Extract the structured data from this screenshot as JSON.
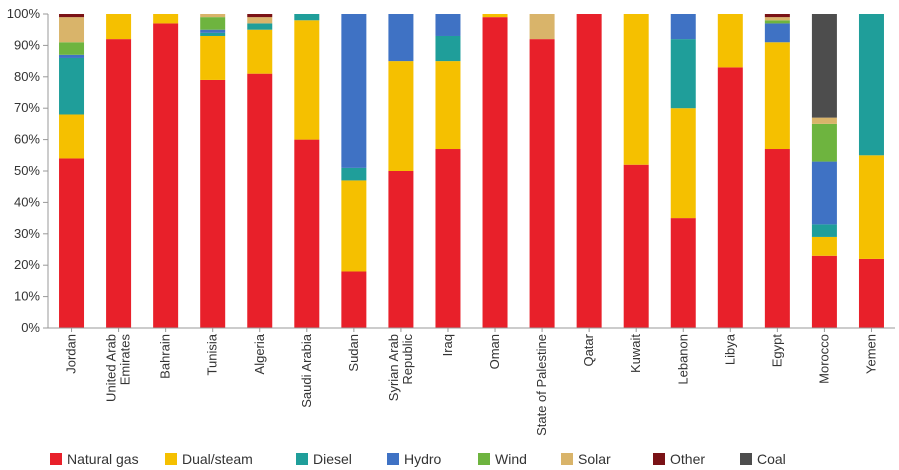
{
  "chart_data": {
    "type": "bar",
    "stacked": true,
    "normalized": true,
    "title": "",
    "xlabel": "",
    "ylabel": "",
    "ylim": [
      0,
      100
    ],
    "yticks": [
      "0%",
      "10%",
      "20%",
      "30%",
      "40%",
      "50%",
      "60%",
      "70%",
      "80%",
      "90%",
      "100%"
    ],
    "grid": false,
    "legend_position": "bottom",
    "categories": [
      [
        "Jordan"
      ],
      [
        "United Arab",
        "Emirates"
      ],
      [
        "Bahrain"
      ],
      [
        "Tunisia"
      ],
      [
        "Algeria"
      ],
      [
        "Saudi Arabia"
      ],
      [
        "Sudan"
      ],
      [
        "Syrian Arab",
        "Republic"
      ],
      [
        "Iraq"
      ],
      [
        "Oman"
      ],
      [
        "State of Palestine"
      ],
      [
        "Qatar"
      ],
      [
        "Kuwait"
      ],
      [
        "Lebanon"
      ],
      [
        "Libya"
      ],
      [
        "Egypt"
      ],
      [
        "Morocco"
      ],
      [
        "Yemen"
      ]
    ],
    "series": [
      {
        "name": "Natural gas",
        "color": "#e8202a",
        "values": [
          54,
          92,
          97,
          79,
          81,
          60,
          18,
          50,
          57,
          99,
          92,
          100,
          52,
          35,
          83,
          57,
          23,
          22
        ]
      },
      {
        "name": "Dual/steam",
        "color": "#f5c000",
        "values": [
          14,
          8,
          3,
          14,
          14,
          38,
          29,
          35,
          28,
          1,
          0,
          0,
          48,
          35,
          17,
          34,
          6,
          33
        ]
      },
      {
        "name": "Diesel",
        "color": "#1f9e9a",
        "values": [
          18,
          0,
          0,
          1,
          2,
          2,
          4,
          0,
          8,
          0,
          0,
          0,
          0,
          22,
          0,
          0,
          4,
          45
        ]
      },
      {
        "name": "Hydro",
        "color": "#3f72c4",
        "values": [
          1,
          0,
          0,
          1,
          0,
          0,
          49,
          15,
          7,
          0,
          0,
          0,
          0,
          8,
          0,
          6,
          20,
          0
        ]
      },
      {
        "name": "Wind",
        "color": "#6eb43f",
        "values": [
          4,
          0,
          0,
          4,
          0,
          0,
          0,
          0,
          0,
          0,
          0,
          0,
          0,
          0,
          0,
          1,
          12,
          0
        ]
      },
      {
        "name": "Solar",
        "color": "#d9b46a",
        "values": [
          8,
          0,
          0,
          1,
          2,
          0,
          0,
          0,
          0,
          0,
          8,
          0,
          0,
          0,
          0,
          1,
          2,
          0
        ]
      },
      {
        "name": "Other",
        "color": "#7a1216",
        "values": [
          1,
          0,
          0,
          0,
          1,
          0,
          0,
          0,
          0,
          0,
          0,
          0,
          0,
          0,
          0,
          1,
          0,
          0
        ]
      },
      {
        "name": "Coal",
        "color": "#4d4d4d",
        "values": [
          0,
          0,
          0,
          0,
          0,
          0,
          0,
          0,
          0,
          0,
          0,
          0,
          0,
          0,
          0,
          0,
          33,
          0
        ]
      }
    ]
  }
}
